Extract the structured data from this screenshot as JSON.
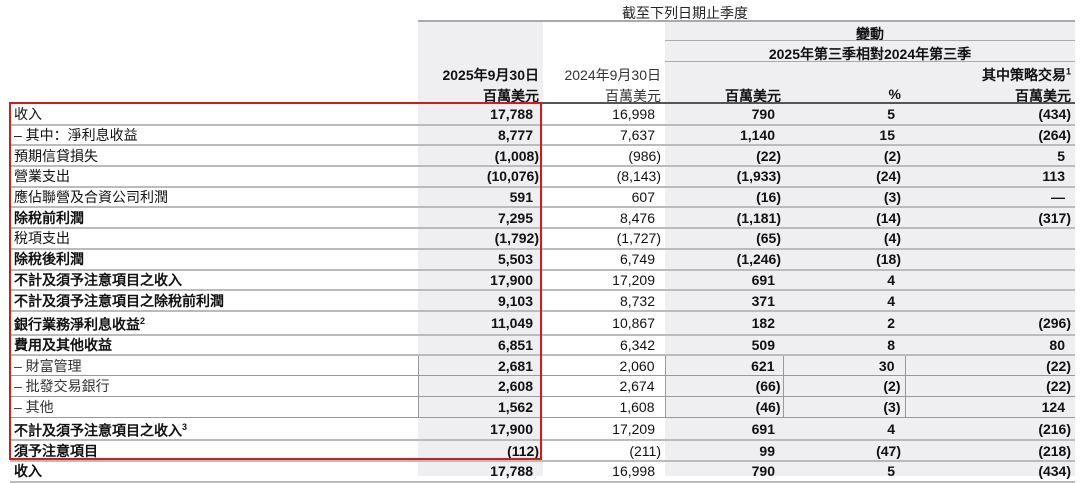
{
  "header": {
    "caption": "截至下列日期止季度",
    "change_title": "變動",
    "change_period": "2025年第三季相對2024年第三季",
    "col1_date": "2025年9月30日",
    "col1_unit": "百萬美元",
    "col2_date": "2024年9月30日",
    "col2_unit": "百萬美元",
    "col3_unit": "百萬美元",
    "col4_unit": "%",
    "col5_title": "其中策略交易",
    "col5_sup": "1",
    "col5_unit": "百萬美元"
  },
  "rows": [
    {
      "label": "收入",
      "sup": "",
      "bold": false,
      "sub": false,
      "values": [
        "17,788",
        "16,998",
        "790",
        "5",
        "(434)"
      ]
    },
    {
      "label": "– 其中：淨利息收益",
      "sup": "",
      "bold": false,
      "sub": false,
      "values": [
        "8,777",
        "7,637",
        "1,140",
        "15",
        "(264)"
      ]
    },
    {
      "label": "預期信貸損失",
      "sup": "",
      "bold": false,
      "sub": false,
      "values": [
        "(1,008)",
        "(986)",
        "(22)",
        "(2)",
        "5"
      ]
    },
    {
      "label": "營業支出",
      "sup": "",
      "bold": false,
      "sub": false,
      "values": [
        "(10,076)",
        "(8,143)",
        "(1,933)",
        "(24)",
        "113"
      ]
    },
    {
      "label": "應佔聯營及合資公司利潤",
      "sup": "",
      "bold": false,
      "sub": false,
      "values": [
        "591",
        "607",
        "(16)",
        "(3)",
        "—"
      ]
    },
    {
      "label": "除稅前利潤",
      "sup": "",
      "bold": true,
      "sub": false,
      "values": [
        "7,295",
        "8,476",
        "(1,181)",
        "(14)",
        "(317)"
      ]
    },
    {
      "label": "稅項支出",
      "sup": "",
      "bold": false,
      "sub": false,
      "values": [
        "(1,792)",
        "(1,727)",
        "(65)",
        "(4)",
        ""
      ]
    },
    {
      "label": "除稅後利潤",
      "sup": "",
      "bold": true,
      "sub": false,
      "values": [
        "5,503",
        "6,749",
        "(1,246)",
        "(18)",
        ""
      ]
    },
    {
      "label": "不計及須予注意項目之收入",
      "sup": "",
      "bold": true,
      "sub": false,
      "values": [
        "17,900",
        "17,209",
        "691",
        "4",
        ""
      ]
    },
    {
      "label": "不計及須予注意項目之除稅前利潤",
      "sup": "",
      "bold": true,
      "sub": false,
      "values": [
        "9,103",
        "8,732",
        "371",
        "4",
        ""
      ]
    },
    {
      "label": "銀行業務淨利息收益",
      "sup": "2",
      "bold": true,
      "sub": false,
      "values": [
        "11,049",
        "10,867",
        "182",
        "2",
        "(296)"
      ]
    },
    {
      "label": "費用及其他收益",
      "sup": "",
      "bold": true,
      "sub": false,
      "values": [
        "6,851",
        "6,342",
        "509",
        "8",
        "80"
      ]
    },
    {
      "label": "– 財富管理",
      "sup": "",
      "bold": false,
      "sub": true,
      "values": [
        "2,681",
        "2,060",
        "621",
        "30",
        "(22)"
      ]
    },
    {
      "label": "– 批發交易銀行",
      "sup": "",
      "bold": false,
      "sub": true,
      "values": [
        "2,608",
        "2,674",
        "(66)",
        "(2)",
        "(22)"
      ]
    },
    {
      "label": "– 其他",
      "sup": "",
      "bold": false,
      "sub": true,
      "values": [
        "1,562",
        "1,608",
        "(46)",
        "(3)",
        "124"
      ]
    },
    {
      "label": "不計及須予注意項目之收入",
      "sup": "3",
      "bold": true,
      "sub": false,
      "values": [
        "17,900",
        "17,209",
        "691",
        "4",
        "(216)"
      ]
    },
    {
      "label": "須予注意項目",
      "sup": "",
      "bold": true,
      "sub": false,
      "values": [
        "(112)",
        "(211)",
        "99",
        "(47)",
        "(218)"
      ]
    },
    {
      "label": "收入",
      "sup": "",
      "bold": true,
      "sub": false,
      "values": [
        "17,788",
        "16,998",
        "790",
        "5",
        "(434)"
      ]
    }
  ],
  "colors": {
    "highlight_box": "#c8201e",
    "shade": "#efeef1"
  }
}
